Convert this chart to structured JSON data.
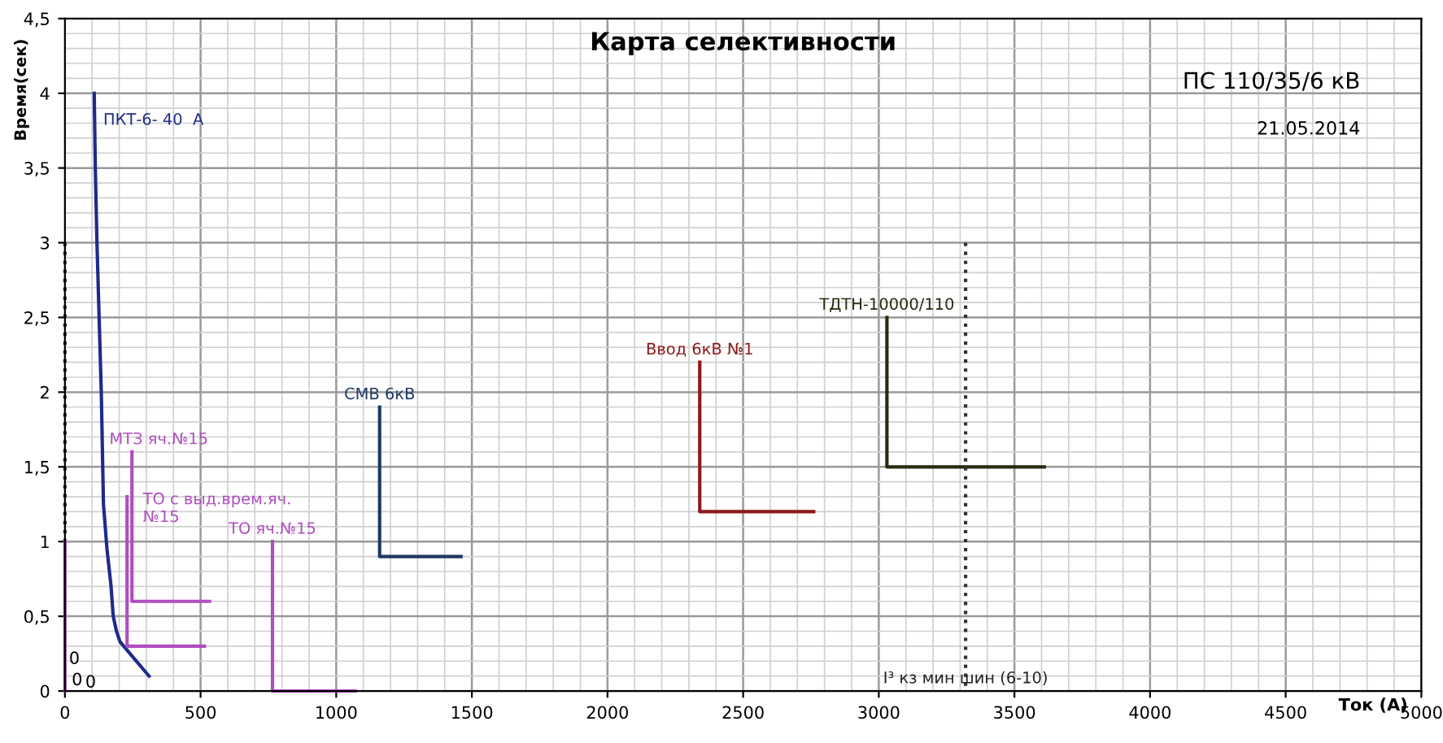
{
  "chart_data": {
    "type": "line",
    "title": "Карта селективности",
    "xlabel": "Ток (А)",
    "ylabel": "Время(сек)",
    "xlim": [
      0,
      5000
    ],
    "ylim": [
      0,
      4.5
    ],
    "xticks": [
      0,
      500,
      1000,
      1500,
      2000,
      2500,
      3000,
      3500,
      4000,
      4500,
      5000
    ],
    "yticks": [
      0,
      {
        "value": 0.5,
        "label": "0,5"
      },
      1,
      {
        "value": 1.5,
        "label": "1,5"
      },
      2,
      {
        "value": 2.5,
        "label": "2,5"
      },
      3,
      {
        "value": 3.5,
        "label": "3,5"
      },
      4,
      {
        "value": 4.5,
        "label": "4,5"
      }
    ],
    "grid": true,
    "legend": false,
    "marker": "none",
    "annotations": [
      "ПС 110/35/6 кВ",
      "21.05.2014",
      "0",
      "0"
    ],
    "series": [
      {
        "name": "ПКТ-6- 40  А",
        "color": "#1f2a8a",
        "x": [
          108,
          112,
          118,
          126,
          134,
          142,
          155,
          170,
          178,
          190,
          203,
          240,
          310
        ],
        "values": [
          4.0,
          3.5,
          3.0,
          2.5,
          2.0,
          1.25,
          0.95,
          0.7,
          0.5,
          0.4,
          0.33,
          0.25,
          0.1
        ]
      },
      {
        "name": "МТЗ яч.№15",
        "color": "#b04dc0",
        "x": [
          247,
          247,
          533
        ],
        "values": [
          1.6,
          0.6,
          0.6
        ]
      },
      {
        "name": "ТО с выд.врем.яч.\n№15",
        "color": "#b04dc0",
        "x": [
          229,
          229,
          514
        ],
        "values": [
          1.3,
          0.3,
          0.3
        ]
      },
      {
        "name": "ТО яч.№15",
        "color": "#b04dc0",
        "x": [
          765,
          765,
          1070
        ],
        "values": [
          1.0,
          0,
          0
        ]
      },
      {
        "name": "СМВ 6кВ",
        "color": "#1f3864",
        "x": [
          1160,
          1160,
          1460
        ],
        "values": [
          1.9,
          0.9,
          0.9
        ]
      },
      {
        "name": "Ввод 6кВ №1",
        "color": "#8b1a1a",
        "x": [
          2340,
          2340,
          2760
        ],
        "values": [
          2.2,
          1.2,
          1.2
        ]
      },
      {
        "name": "ТДТН-10000/110",
        "color": "#2a2a10",
        "x": [
          3030,
          3030,
          3610
        ],
        "values": [
          2.5,
          1.5,
          1.5
        ]
      },
      {
        "name": "I³ кз мин шин (6-10)",
        "color": "#333333",
        "line_style": "dotted",
        "x": [
          3320,
          3320
        ],
        "values": [
          3.0,
          0
        ]
      },
      {
        "color": "#333333",
        "line_style": "dotted",
        "x": [
          0,
          0
        ],
        "values": [
          3.0,
          1.0
        ]
      },
      {
        "color": "#b04dc0",
        "x": [
          0,
          0
        ],
        "values": [
          1.0,
          0
        ],
        "value_labels": [
          null,
          "0"
        ]
      }
    ]
  }
}
